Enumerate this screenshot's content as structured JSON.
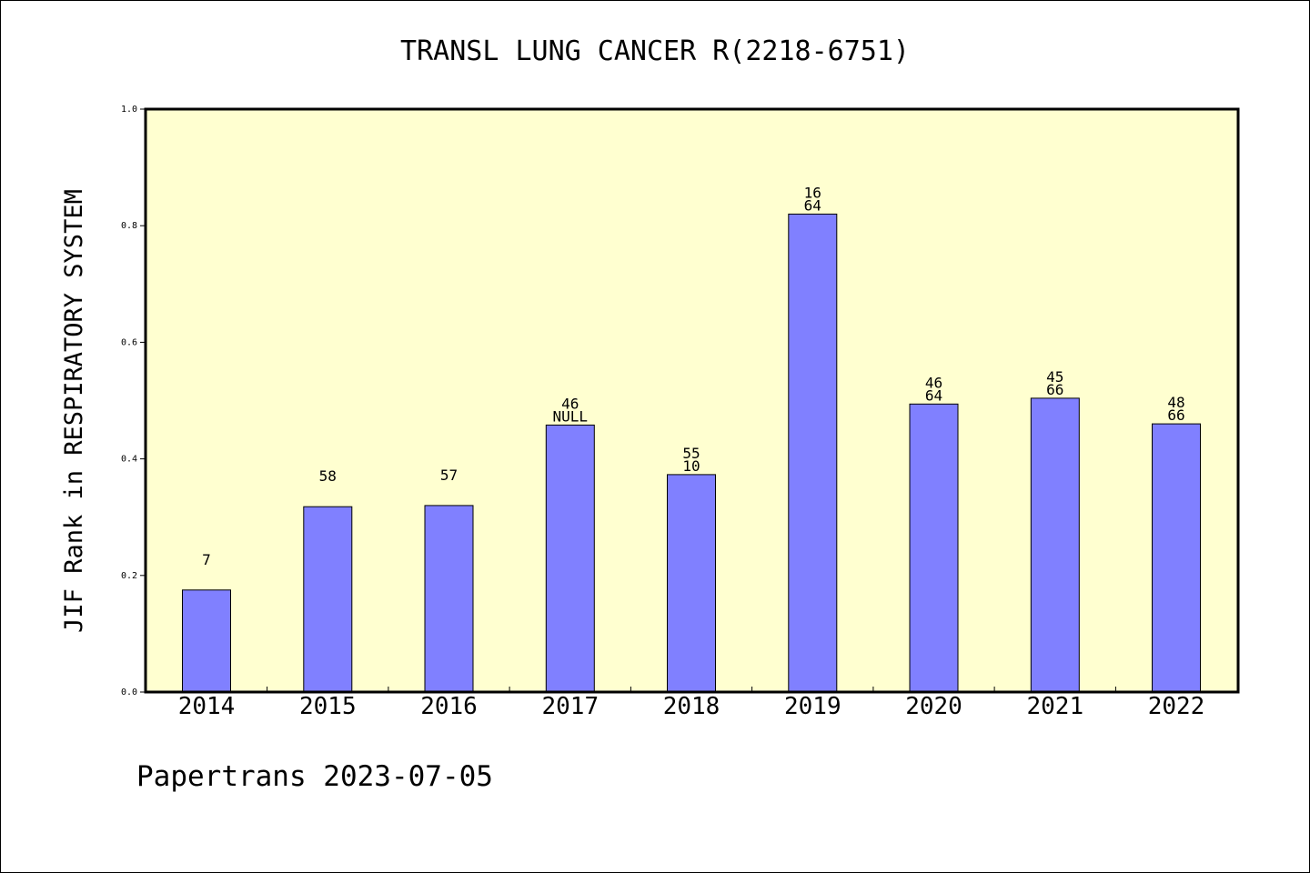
{
  "chart_data": {
    "type": "bar",
    "title": "TRANSL LUNG CANCER R(2218-6751)",
    "xlabel": "",
    "ylabel": "JIF Rank in RESPIRATORY SYSTEM",
    "categories": [
      "2014",
      "2015",
      "2016",
      "2017",
      "2018",
      "2019",
      "2020",
      "2021",
      "2022"
    ],
    "values": [
      0.175,
      0.318,
      0.32,
      0.458,
      0.373,
      0.82,
      0.494,
      0.504,
      0.46
    ],
    "labels_top": [
      "7",
      "58",
      "57",
      "46",
      "55",
      "16",
      "46",
      "45",
      "48"
    ],
    "labels_bottom": [
      "",
      "",
      "",
      "NULL",
      "10",
      "64",
      "64",
      "66",
      "66"
    ],
    "ylim": [
      0,
      1.0
    ],
    "yticks": [
      "0.0",
      "0.2",
      "0.4",
      "0.6",
      "0.8",
      "1.0"
    ],
    "grid": false,
    "legend": "none",
    "colors": {
      "bar": "#8080ff",
      "plot_bg": "#ffffd0",
      "axis": "#000000"
    }
  },
  "footer": "Papertrans 2023-07-05"
}
